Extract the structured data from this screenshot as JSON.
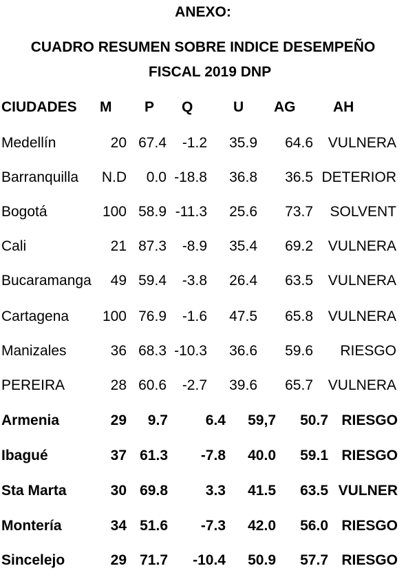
{
  "heading": {
    "anexo": "ANEXO:",
    "title_line1": "CUADRO RESUMEN SOBRE INDICE DESEMPEÑO",
    "title_line2": "FISCAL  2019 DNP"
  },
  "table": {
    "columns": [
      "CIUDADES",
      "M",
      "P",
      "Q",
      "U",
      "AG",
      "AH"
    ],
    "rows": [
      {
        "ciudad": "Medellín",
        "m": "20",
        "p": "67.4",
        "q": "-1.2",
        "u": "35.9",
        "ag": "64.6",
        "ah": "VULNERA",
        "bold": false
      },
      {
        "ciudad": "Barranquilla",
        "m": "N.D",
        "p": "0.0",
        "q": "-18.8",
        "u": "36.8",
        "ag": "36.5",
        "ah": "DETERIOR",
        "bold": false
      },
      {
        "ciudad": "Bogotá",
        "m": "100",
        "p": "58.9",
        "q": "-11.3",
        "u": "25.6",
        "ag": "73.7",
        "ah": "SOLVENT",
        "bold": false
      },
      {
        "ciudad": "Cali",
        "m": "21",
        "p": "87.3",
        "q": "-8.9",
        "u": "35.4",
        "ag": "69.2",
        "ah": "VULNERA",
        "bold": false
      },
      {
        "ciudad": "Bucaramanga",
        "m": "49",
        "p": "59.4",
        "q": "-3.8",
        "u": "26.4",
        "ag": "63.5",
        "ah": "VULNERA",
        "bold": false
      },
      {
        "ciudad": "Cartagena",
        "m": "100",
        "p": "76.9",
        "q": "-1.6",
        "u": "47.5",
        "ag": "65.8",
        "ah": "VULNERA",
        "bold": false
      },
      {
        "ciudad": "Manizales",
        "m": "36",
        "p": "68.3",
        "q": "-10.3",
        "u": "36.6",
        "ag": "59.6",
        "ah": "RIESGO",
        "bold": false
      },
      {
        "ciudad": "PEREIRA",
        "m": "28",
        "p": "60.6",
        "q": "-2.7",
        "u": "39.6",
        "ag": "65.7",
        "ah": "VULNERA",
        "bold": false
      },
      {
        "ciudad": "Armenia",
        "m": "29",
        "p": "9.7",
        "q": "6.4",
        "u": "59,7",
        "ag": "50.7",
        "ah": "RIESGO",
        "bold": true
      },
      {
        "ciudad": "Ibagué",
        "m": "37",
        "p": "61.3",
        "q": "-7.8",
        "u": "40.0",
        "ag": "59.1",
        "ah": "RIESGO",
        "bold": true
      },
      {
        "ciudad": "Sta Marta",
        "m": "30",
        "p": "69.8",
        "q": "3.3",
        "u": "41.5",
        "ag": "63.5",
        "ah": "VULNER",
        "bold": true
      },
      {
        "ciudad": "Montería",
        "m": "34",
        "p": "51.6",
        "q": "-7.3",
        "u": "42.0",
        "ag": "56.0",
        "ah": "RIESGO",
        "bold": true
      },
      {
        "ciudad": "Sincelejo",
        "m": "29",
        "p": "71.7",
        "q": "-10.4",
        "u": "50.9",
        "ag": "57.7",
        "ah": "RIESGO",
        "bold": true
      }
    ]
  }
}
